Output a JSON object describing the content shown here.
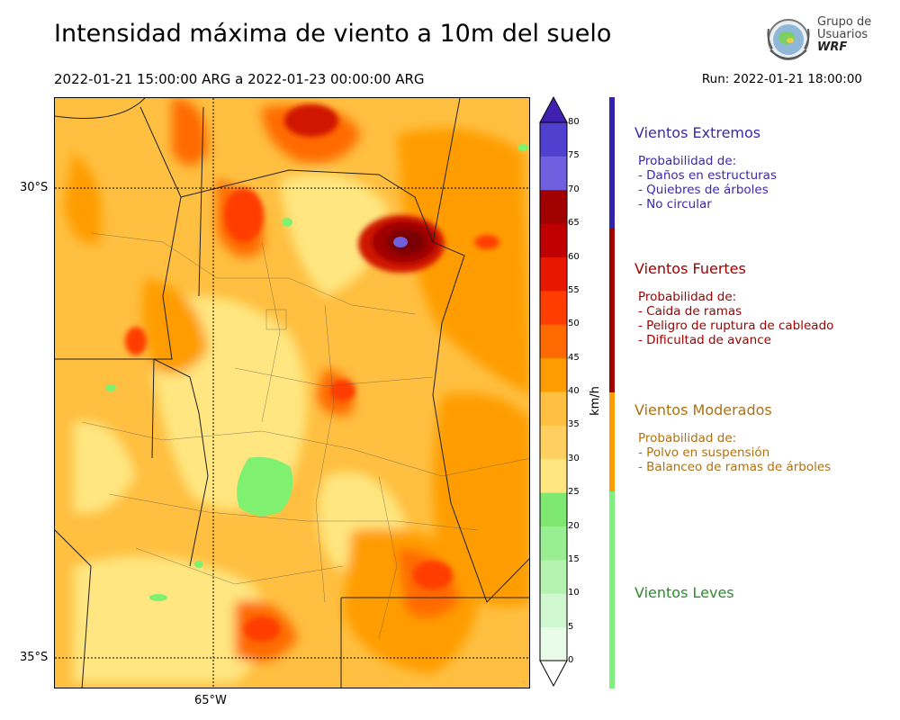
{
  "header": {
    "title": "Intensidad máxima de viento a 10m del suelo",
    "period": "2022-01-21 15:00:00 ARG  a  2022-01-23 00:00:00 ARG",
    "run": "Run: 2022-01-21 18:00:00"
  },
  "logo": {
    "line1": "Grupo de",
    "line2": "Usuarios",
    "line3": "WRF"
  },
  "map": {
    "lat_labels": [
      "30°S",
      "35°S"
    ],
    "lon_labels": [
      "65°W"
    ],
    "wind_max_region": "central-east",
    "colors": {
      "light_yellow": "#ffe680",
      "yellow_orange": "#ffbf40",
      "orange": "#ff9d00",
      "dark_orange": "#ff6a00",
      "red_orange": "#ff3d00",
      "red": "#d01500",
      "dark_red": "#a00000",
      "darkest_red": "#7a0000",
      "blue_purple": "#7060e0",
      "green": "#80f070"
    }
  },
  "colorbar": {
    "unit_label": "km/h",
    "ticks": [
      "0",
      "5",
      "10",
      "15",
      "20",
      "25",
      "30",
      "35",
      "40",
      "45",
      "50",
      "55",
      "60",
      "65",
      "70",
      "75",
      "80"
    ],
    "bin_colors": [
      "#e8fce8",
      "#d0f8d0",
      "#b4f4b0",
      "#98ee90",
      "#7ee870",
      "#ffe680",
      "#ffd060",
      "#ffbf40",
      "#ff9d00",
      "#ff6a00",
      "#ff3d00",
      "#e81800",
      "#c00000",
      "#a00000",
      "#7060e0",
      "#5040d0",
      "#4020b0"
    ],
    "extend_colors": {
      "min": "#ffffff",
      "max": "#4020b0"
    }
  },
  "categories": [
    {
      "title": "Vientos Extremos",
      "color": "#3a2aa8",
      "bar_color": "#3322aa",
      "desc": [
        "Probabilidad de:",
        "- Daños en estructuras",
        "- Quiebres de árboles",
        "- No circular"
      ]
    },
    {
      "title": "Vientos Fuertes",
      "color": "#a00000",
      "bar_color": "#a00000",
      "desc": [
        "Probabilidad de:",
        "- Caida de ramas",
        "- Peligro de ruptura de cableado",
        "- Dificultad de avance"
      ]
    },
    {
      "title": "Vientos Moderados",
      "color": "#b07010",
      "bar_color": "#ff9d00",
      "desc": [
        "Probabilidad de:",
        "- Polvo en suspensión",
        "- Balanceo de ramas de árboles"
      ]
    },
    {
      "title": "Vientos Leves",
      "color": "#2e8b2e",
      "bar_color": "#7ef07e",
      "desc": []
    }
  ]
}
